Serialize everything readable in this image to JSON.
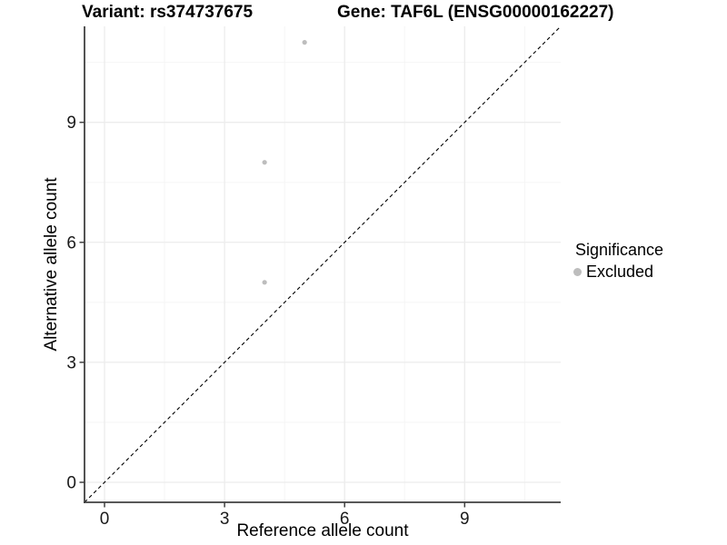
{
  "titles": {
    "variant": "Variant: rs374737675",
    "gene": "Gene: TAF6L (ENSG00000162227)"
  },
  "chart_data": {
    "type": "scatter",
    "title": "Variant: rs374737675    Gene: TAF6L (ENSG00000162227)",
    "xlabel": "Reference allele count",
    "ylabel": "Alternative allele count",
    "xlim": [
      -0.5,
      11.4
    ],
    "ylim": [
      -0.5,
      11.4
    ],
    "xticks": [
      0,
      3,
      6,
      9
    ],
    "yticks": [
      0,
      3,
      6,
      9
    ],
    "minor_ticks": [
      1.5,
      4.5,
      7.5,
      10.5
    ],
    "grid": "major+minor",
    "identity_line": {
      "style": "dashed",
      "slope": 1,
      "intercept": 0,
      "color": "#000000"
    },
    "series": [
      {
        "name": "Excluded",
        "color": "#bdbdbd",
        "points": [
          [
            4,
            5
          ],
          [
            4,
            8
          ],
          [
            5,
            11
          ]
        ]
      }
    ],
    "legend": {
      "title": "Significance",
      "position": "right",
      "items": [
        {
          "label": "Excluded",
          "color": "#bdbdbd"
        }
      ]
    }
  },
  "colors": {
    "background": "#ffffff",
    "grid_major": "#ececec",
    "grid_minor": "#f5f5f5",
    "axis_line": "#404040",
    "tick_text": "#1a1a1a",
    "point": "#bdbdbd"
  }
}
